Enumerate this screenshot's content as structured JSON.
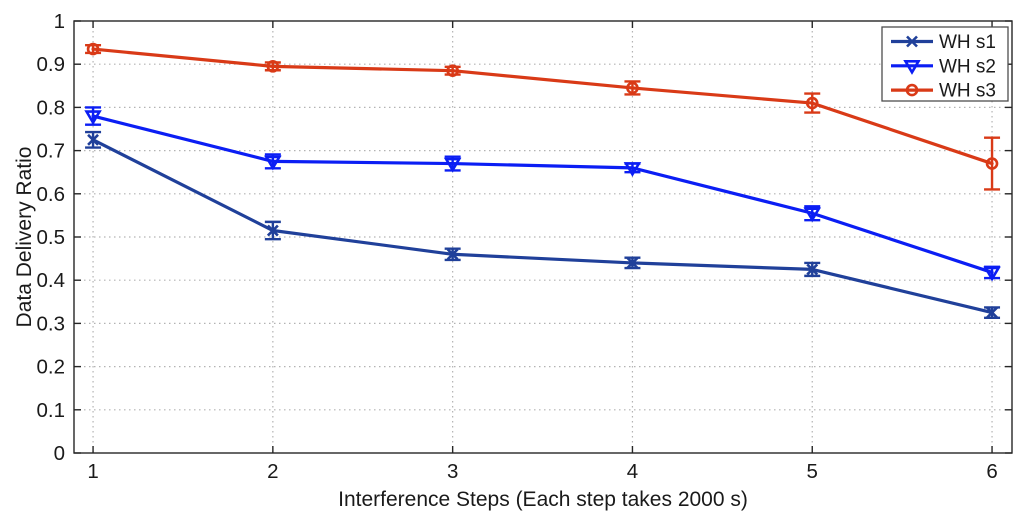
{
  "figure": {
    "background": "#ffffff",
    "axis_color": "#262626",
    "grid_color": "#b3b3b3",
    "legend_border_color": "#4d4d4d"
  },
  "chart_data": {
    "type": "line",
    "title": "",
    "xlabel": "Interference Steps (Each step takes 2000 s)",
    "ylabel": "Data Delivery Ratio",
    "x": [
      1,
      2,
      3,
      4,
      5,
      6
    ],
    "xtick_labels": [
      "1",
      "2",
      "3",
      "4",
      "5",
      "6"
    ],
    "ytick_values": [
      0,
      0.1,
      0.2,
      0.3,
      0.4,
      0.5,
      0.6,
      0.7,
      0.8,
      0.9,
      1
    ],
    "ytick_labels": [
      "0",
      "0.1",
      "0.2",
      "0.3",
      "0.4",
      "0.5",
      "0.6",
      "0.7",
      "0.8",
      "0.9",
      "1"
    ],
    "xlim": [
      0.894,
      6.111
    ],
    "ylim": [
      0,
      1
    ],
    "grid": true,
    "error_bars": true,
    "legend_position": "top-right",
    "series": [
      {
        "name": "WH s1",
        "color": "#20409a",
        "marker": "x",
        "values": [
          0.725,
          0.515,
          0.46,
          0.44,
          0.425,
          0.325
        ],
        "yerr": [
          0.018,
          0.02,
          0.013,
          0.012,
          0.015,
          0.012
        ]
      },
      {
        "name": "WH s2",
        "color": "#0b1ef4",
        "marker": "triangle-down",
        "values": [
          0.78,
          0.675,
          0.67,
          0.66,
          0.555,
          0.418
        ],
        "yerr": [
          0.02,
          0.016,
          0.016,
          0.01,
          0.016,
          0.013
        ]
      },
      {
        "name": "WH s3",
        "color": "#d93a17",
        "marker": "circle",
        "values": [
          0.935,
          0.895,
          0.885,
          0.845,
          0.81,
          0.67
        ],
        "yerr": [
          0.009,
          0.009,
          0.009,
          0.015,
          0.022,
          0.06
        ]
      }
    ]
  }
}
